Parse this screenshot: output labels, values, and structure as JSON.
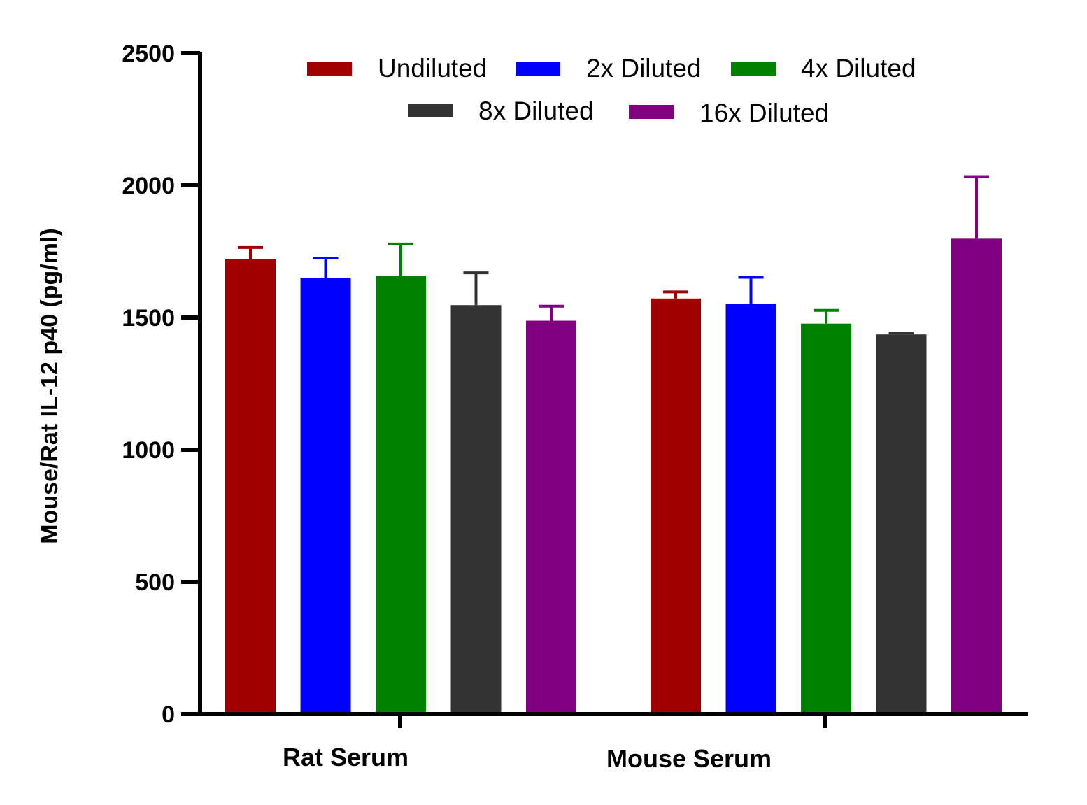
{
  "chart_data": {
    "type": "bar",
    "categories": [
      "Rat Serum",
      "Mouse Serum"
    ],
    "series": [
      {
        "name": "Undiluted",
        "color": "#a00000",
        "values": [
          1720,
          1572
        ],
        "errors": [
          45,
          25
        ]
      },
      {
        "name": "2x Diluted",
        "color": "#0000ff",
        "values": [
          1650,
          1552
        ],
        "errors": [
          75,
          100
        ]
      },
      {
        "name": "4x Diluted",
        "color": "#008000",
        "values": [
          1658,
          1477
        ],
        "errors": [
          120,
          50
        ]
      },
      {
        "name": "8x Diluted",
        "color": "#333333",
        "values": [
          1547,
          1436
        ],
        "errors": [
          122,
          5
        ]
      },
      {
        "name": "16x Diluted",
        "color": "#800080",
        "values": [
          1488,
          1798
        ],
        "errors": [
          55,
          235
        ]
      }
    ],
    "ylabel": "Mouse/Rat IL-12 p40 (pg/ml)",
    "xlabel": "",
    "ylim": [
      0,
      2500
    ],
    "yticks": [
      0,
      500,
      1000,
      1500,
      2000,
      2500
    ],
    "legend_position": "top",
    "grid": false
  }
}
